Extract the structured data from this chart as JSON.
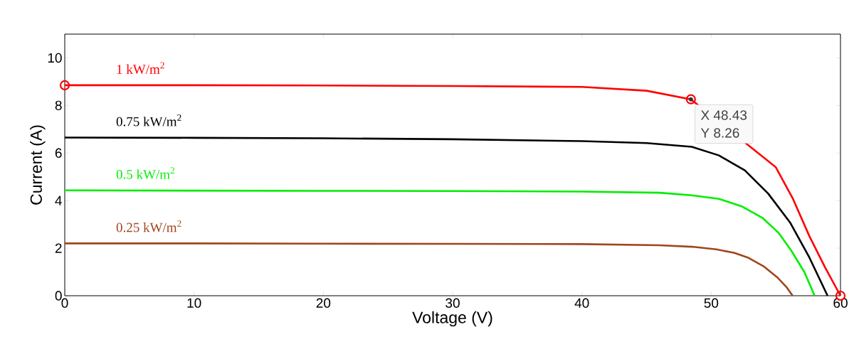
{
  "chart_data": {
    "type": "line",
    "xlabel": "Voltage (V)",
    "ylabel": "Current (A)",
    "xlim": [
      0,
      60
    ],
    "ylim": [
      0,
      11
    ],
    "xticks": [
      0,
      10,
      20,
      30,
      40,
      50,
      60
    ],
    "yticks": [
      0,
      2,
      4,
      6,
      8,
      10
    ],
    "grid": false,
    "line_style": "solid",
    "series": [
      {
        "name": "1 kW/m$^{2}$",
        "color": "#ff0000",
        "x": [
          0,
          10,
          20,
          30,
          40,
          45,
          48.43,
          50.5,
          52,
          53.5,
          55,
          56.3,
          57.6,
          58.8,
          60
        ],
        "values": [
          8.85,
          8.85,
          8.84,
          8.82,
          8.78,
          8.62,
          8.26,
          null,
          null,
          null,
          5.4,
          4.1,
          2.5,
          1.2,
          0
        ]
      },
      {
        "name": "0.75 kW/m$^{2}$",
        "color": "#000000",
        "x": [
          0,
          10,
          20,
          30,
          40,
          45,
          48.5,
          50.6,
          52.6,
          54.4,
          56.1,
          57.6,
          59
        ],
        "values": [
          6.65,
          6.64,
          6.62,
          6.58,
          6.5,
          6.42,
          6.26,
          5.9,
          5.27,
          4.3,
          3.08,
          1.6,
          0
        ]
      },
      {
        "name": "0.5 kW/m$^{2}$",
        "color": "#00ee00",
        "x": [
          0,
          10,
          20,
          30,
          40,
          46,
          48.5,
          50.6,
          52.4,
          54,
          55.2,
          56.2,
          57.2,
          58
        ],
        "values": [
          4.43,
          4.42,
          4.41,
          4.4,
          4.38,
          4.33,
          4.22,
          4.07,
          3.75,
          3.26,
          2.65,
          1.89,
          1.0,
          0
        ]
      },
      {
        "name": "0.25 kW/m$^{2}$",
        "color": "#a0461e",
        "x": [
          0,
          10,
          20,
          30,
          40,
          46,
          48.5,
          50.4,
          51.8,
          52.9,
          54.1,
          55.1,
          55.8,
          56.3
        ],
        "values": [
          2.2,
          2.2,
          2.19,
          2.18,
          2.17,
          2.12,
          2.06,
          1.95,
          1.8,
          1.59,
          1.22,
          0.78,
          0.38,
          0
        ]
      },
      {
        "type": "scatter",
        "color": "#ff0000",
        "x": [
          0,
          48.43,
          60
        ],
        "values": [
          8.85,
          8.26,
          0
        ]
      }
    ],
    "annotations": [
      {
        "text": "X 48.43",
        "x": 48.43,
        "y": 8.26
      },
      "Y 8.26"
    ]
  }
}
